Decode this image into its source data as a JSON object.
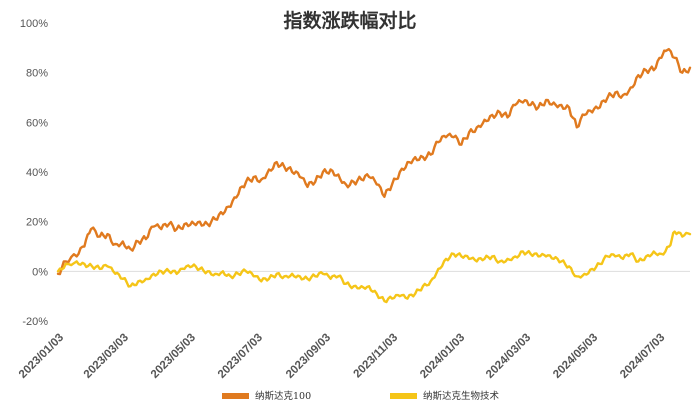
{
  "chart_data": {
    "type": "line",
    "title": "指数涨跌幅对比",
    "xlabel": "",
    "ylabel": "",
    "x_ticks": [
      "2023/01/03",
      "2023/03/03",
      "2023/05/03",
      "2023/07/03",
      "2023/09/03",
      "2023/11/03",
      "2024/01/03",
      "2024/03/03",
      "2024/05/03",
      "2024/07/03"
    ],
    "y_ticks": [
      "100%",
      "80%",
      "60%",
      "40%",
      "20%",
      "0%",
      "-20%"
    ],
    "ylim": [
      -20,
      100
    ],
    "xlim": [
      "2023/01/03",
      "2024/07/31"
    ],
    "grid": false,
    "legend_position": "bottom-center",
    "series": [
      {
        "name": "纳斯达克100",
        "color": "#e07a1f",
        "points": [
          [
            "2023/01/03",
            -1
          ],
          [
            "2023/01/10",
            4
          ],
          [
            "2023/01/20",
            6
          ],
          [
            "2023/01/27",
            10
          ],
          [
            "2023/02/02",
            17
          ],
          [
            "2023/02/10",
            14
          ],
          [
            "2023/02/17",
            15
          ],
          [
            "2023/02/24",
            11
          ],
          [
            "2023/03/03",
            12
          ],
          [
            "2023/03/10",
            9
          ],
          [
            "2023/03/17",
            12
          ],
          [
            "2023/03/24",
            13
          ],
          [
            "2023/03/31",
            18
          ],
          [
            "2023/04/07",
            17
          ],
          [
            "2023/04/14",
            19
          ],
          [
            "2023/04/21",
            17
          ],
          [
            "2023/04/28",
            19
          ],
          [
            "2023/05/05",
            20
          ],
          [
            "2023/05/12",
            20
          ],
          [
            "2023/05/19",
            19
          ],
          [
            "2023/05/26",
            21
          ],
          [
            "2023/06/02",
            23
          ],
          [
            "2023/06/09",
            26
          ],
          [
            "2023/06/16",
            31
          ],
          [
            "2023/06/23",
            36
          ],
          [
            "2023/06/30",
            38
          ],
          [
            "2023/07/07",
            37
          ],
          [
            "2023/07/14",
            41
          ],
          [
            "2023/07/21",
            44
          ],
          [
            "2023/07/28",
            42
          ],
          [
            "2023/08/04",
            40
          ],
          [
            "2023/08/11",
            38
          ],
          [
            "2023/08/18",
            34
          ],
          [
            "2023/08/25",
            36
          ],
          [
            "2023/09/01",
            40
          ],
          [
            "2023/09/08",
            41
          ],
          [
            "2023/09/15",
            39
          ],
          [
            "2023/09/22",
            35
          ],
          [
            "2023/09/29",
            36
          ],
          [
            "2023/10/06",
            37
          ],
          [
            "2023/10/13",
            38
          ],
          [
            "2023/10/20",
            35
          ],
          [
            "2023/10/27",
            30
          ],
          [
            "2023/11/03",
            35
          ],
          [
            "2023/11/10",
            40
          ],
          [
            "2023/11/17",
            44
          ],
          [
            "2023/11/24",
            46
          ],
          [
            "2023/12/01",
            46
          ],
          [
            "2023/12/08",
            47
          ],
          [
            "2023/12/15",
            52
          ],
          [
            "2023/12/22",
            54
          ],
          [
            "2023/12/29",
            54
          ],
          [
            "2024/01/05",
            51
          ],
          [
            "2024/01/12",
            56
          ],
          [
            "2024/01/19",
            58
          ],
          [
            "2024/01/26",
            61
          ],
          [
            "2024/02/02",
            63
          ],
          [
            "2024/02/09",
            64
          ],
          [
            "2024/02/16",
            62
          ],
          [
            "2024/02/23",
            67
          ],
          [
            "2024/03/01",
            68
          ],
          [
            "2024/03/08",
            67
          ],
          [
            "2024/03/15",
            66
          ],
          [
            "2024/03/22",
            69
          ],
          [
            "2024/03/29",
            68
          ],
          [
            "2024/04/05",
            67
          ],
          [
            "2024/04/12",
            66
          ],
          [
            "2024/04/19",
            58
          ],
          [
            "2024/04/26",
            63
          ],
          [
            "2024/05/03",
            64
          ],
          [
            "2024/05/10",
            66
          ],
          [
            "2024/05/17",
            70
          ],
          [
            "2024/05/24",
            72
          ],
          [
            "2024/05/31",
            71
          ],
          [
            "2024/06/07",
            74
          ],
          [
            "2024/06/14",
            79
          ],
          [
            "2024/06/21",
            81
          ],
          [
            "2024/06/28",
            81
          ],
          [
            "2024/07/05",
            86
          ],
          [
            "2024/07/10",
            89
          ],
          [
            "2024/07/17",
            86
          ],
          [
            "2024/07/24",
            80
          ],
          [
            "2024/07/31",
            82
          ]
        ]
      },
      {
        "name": "纳斯达克生物技术",
        "color": "#f5c518",
        "points": [
          [
            "2023/01/03",
            0
          ],
          [
            "2023/01/10",
            3
          ],
          [
            "2023/01/20",
            4
          ],
          [
            "2023/01/27",
            3
          ],
          [
            "2023/02/03",
            2
          ],
          [
            "2023/02/10",
            1
          ],
          [
            "2023/02/17",
            2
          ],
          [
            "2023/02/24",
            -1
          ],
          [
            "2023/03/03",
            -3
          ],
          [
            "2023/03/10",
            -6
          ],
          [
            "2023/03/17",
            -4
          ],
          [
            "2023/03/24",
            -3
          ],
          [
            "2023/03/31",
            -1
          ],
          [
            "2023/04/07",
            0
          ],
          [
            "2023/04/14",
            0
          ],
          [
            "2023/04/21",
            -1
          ],
          [
            "2023/04/28",
            1
          ],
          [
            "2023/05/05",
            2
          ],
          [
            "2023/05/12",
            1
          ],
          [
            "2023/05/19",
            0
          ],
          [
            "2023/05/26",
            -1
          ],
          [
            "2023/06/02",
            0
          ],
          [
            "2023/06/09",
            -2
          ],
          [
            "2023/06/16",
            -1
          ],
          [
            "2023/06/23",
            0
          ],
          [
            "2023/06/30",
            -2
          ],
          [
            "2023/07/07",
            -4
          ],
          [
            "2023/07/14",
            -3
          ],
          [
            "2023/07/21",
            -1
          ],
          [
            "2023/07/28",
            -2
          ],
          [
            "2023/08/04",
            -1
          ],
          [
            "2023/08/11",
            -2
          ],
          [
            "2023/08/18",
            -3
          ],
          [
            "2023/08/25",
            -2
          ],
          [
            "2023/09/01",
            -1
          ],
          [
            "2023/09/08",
            -3
          ],
          [
            "2023/09/15",
            -2
          ],
          [
            "2023/09/22",
            -5
          ],
          [
            "2023/09/29",
            -6
          ],
          [
            "2023/10/06",
            -6
          ],
          [
            "2023/10/13",
            -6
          ],
          [
            "2023/10/20",
            -9
          ],
          [
            "2023/10/27",
            -12
          ],
          [
            "2023/11/03",
            -11
          ],
          [
            "2023/11/10",
            -10
          ],
          [
            "2023/11/17",
            -11
          ],
          [
            "2023/11/24",
            -9
          ],
          [
            "2023/12/01",
            -6
          ],
          [
            "2023/12/08",
            -4
          ],
          [
            "2023/12/15",
            1
          ],
          [
            "2023/12/22",
            5
          ],
          [
            "2023/12/29",
            7
          ],
          [
            "2024/01/05",
            6
          ],
          [
            "2024/01/12",
            5
          ],
          [
            "2024/01/19",
            4
          ],
          [
            "2024/01/26",
            5
          ],
          [
            "2024/02/02",
            6
          ],
          [
            "2024/02/09",
            4
          ],
          [
            "2024/02/16",
            5
          ],
          [
            "2024/02/23",
            6
          ],
          [
            "2024/03/01",
            8
          ],
          [
            "2024/03/08",
            7
          ],
          [
            "2024/03/15",
            6
          ],
          [
            "2024/03/22",
            6
          ],
          [
            "2024/03/29",
            5
          ],
          [
            "2024/04/05",
            4
          ],
          [
            "2024/04/12",
            2
          ],
          [
            "2024/04/19",
            -2
          ],
          [
            "2024/04/26",
            -1
          ],
          [
            "2024/05/03",
            1
          ],
          [
            "2024/05/10",
            3
          ],
          [
            "2024/05/17",
            6
          ],
          [
            "2024/05/24",
            6
          ],
          [
            "2024/05/31",
            5
          ],
          [
            "2024/06/07",
            7
          ],
          [
            "2024/06/14",
            4
          ],
          [
            "2024/06/21",
            6
          ],
          [
            "2024/06/28",
            8
          ],
          [
            "2024/07/05",
            7
          ],
          [
            "2024/07/12",
            10
          ],
          [
            "2024/07/17",
            16
          ],
          [
            "2024/07/24",
            14
          ],
          [
            "2024/07/31",
            15
          ]
        ]
      }
    ]
  }
}
